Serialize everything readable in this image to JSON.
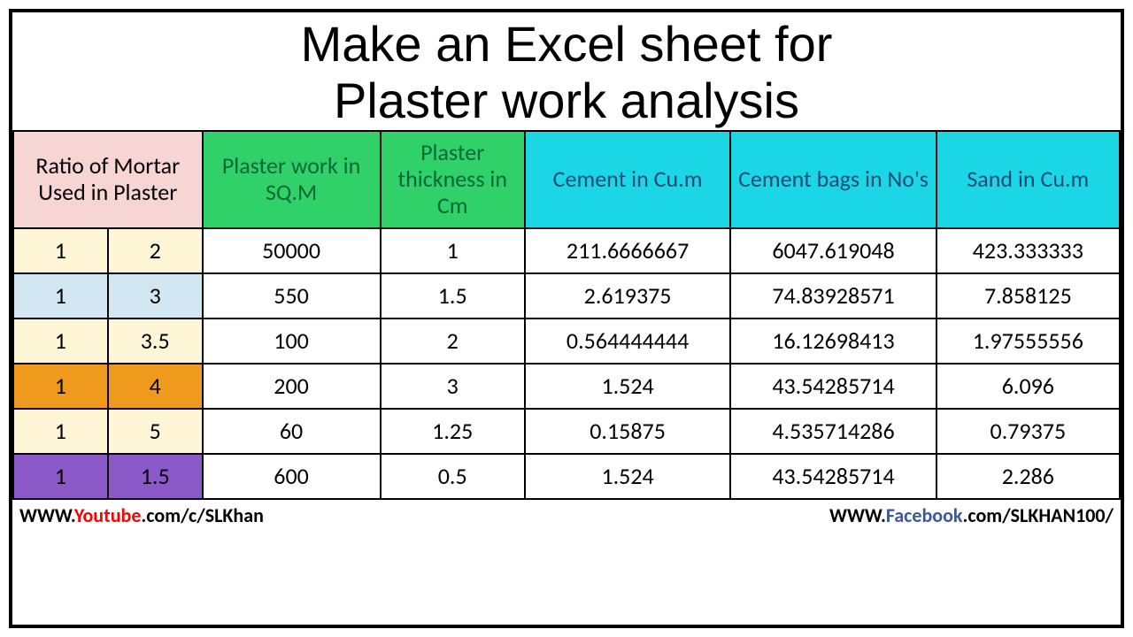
{
  "title_line1": "Make an Excel sheet for",
  "title_line2": "Plaster work analysis",
  "table": {
    "header": {
      "ratio": "Ratio of Mortar Used in Plaster",
      "plaster_work": "Plaster work in SQ.M",
      "thickness": "Plaster thickness in Cm",
      "cement": "Cement in Cu.m",
      "bags": "Cement bags in No's",
      "sand": "Sand in Cu.m",
      "ratio_bg": "#f7d5d5",
      "green_bg": "#2fd168",
      "green_text": "#006838",
      "cyan_bg": "#1bd7e5",
      "cyan_text": "#1f497d"
    },
    "row_colors": {
      "r0": "#fff6d8",
      "r1": "#d2e7f1",
      "r2": "#fff6d8",
      "r3": "#f09a1d",
      "r4": "#fff6d8",
      "r5": "#8a59c7"
    },
    "rows": [
      {
        "ratio1": "1",
        "ratio2": "2",
        "plaster": "50000",
        "thk": "1",
        "cement": "211.6666667",
        "bags": "6047.619048",
        "sand": "423.333333"
      },
      {
        "ratio1": "1",
        "ratio2": "3",
        "plaster": "550",
        "thk": "1.5",
        "cement": "2.619375",
        "bags": "74.83928571",
        "sand": "7.858125"
      },
      {
        "ratio1": "1",
        "ratio2": "3.5",
        "plaster": "100",
        "thk": "2",
        "cement": "0.564444444",
        "bags": "16.12698413",
        "sand": "1.97555556"
      },
      {
        "ratio1": "1",
        "ratio2": "4",
        "plaster": "200",
        "thk": "3",
        "cement": "1.524",
        "bags": "43.54285714",
        "sand": "6.096"
      },
      {
        "ratio1": "1",
        "ratio2": "5",
        "plaster": "60",
        "thk": "1.25",
        "cement": "0.15875",
        "bags": "4.535714286",
        "sand": "0.79375"
      },
      {
        "ratio1": "1",
        "ratio2": "1.5",
        "plaster": "600",
        "thk": "0.5",
        "cement": "1.524",
        "bags": "43.54285714",
        "sand": "2.286"
      }
    ]
  },
  "footer": {
    "left_pre": "WWW.",
    "left_mid": "Youtube",
    "left_post": ".com/c/SLKhan",
    "right_pre": "WWW.",
    "right_mid": "Facebook",
    "right_post": ".com/SLKHAN100/"
  }
}
